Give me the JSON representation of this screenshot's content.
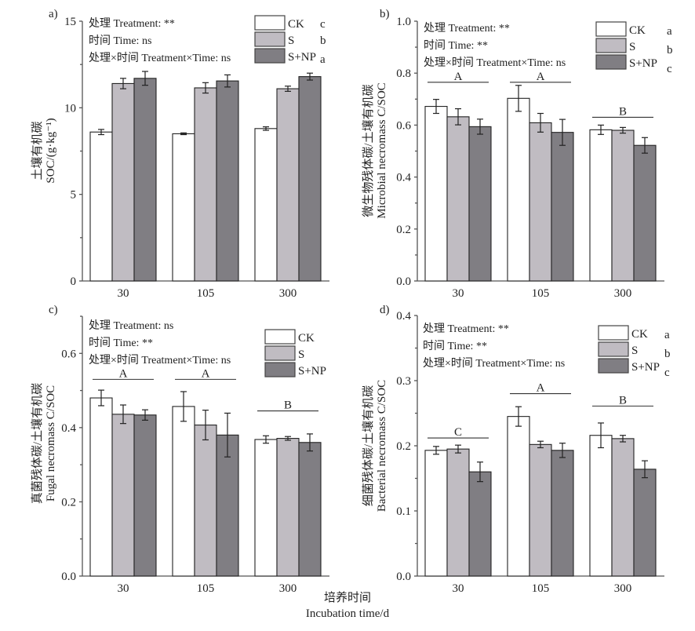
{
  "figure": {
    "xlabel_cn": "培养时间",
    "xlabel_en": "Incubation time/d"
  },
  "series_styles": [
    {
      "name": "CK",
      "color": "#ffffff"
    },
    {
      "name": "S",
      "color": "#c0bcc2"
    },
    {
      "name": "S+NP",
      "color": "#807e83"
    }
  ],
  "chart_data": [
    {
      "type": "bar",
      "panel": "a)",
      "title": "",
      "ylabel_cn": "土壤有机碳",
      "ylabel_en": "SOC/(g·kg⁻¹)",
      "xlabel": "Incubation time/d",
      "categories": [
        "30",
        "105",
        "300"
      ],
      "ylim": [
        0,
        15
      ],
      "yticks": [
        "0",
        "5",
        "10",
        "15"
      ],
      "ytick_values": [
        0,
        5,
        10,
        15
      ],
      "minor_step": 2.5,
      "stats": [
        "处理 Treatment: **",
        "时间 Time: ns",
        "处理×时间 Treatment×Time: ns"
      ],
      "legend": {
        "position": "top-right",
        "letters": [
          "c",
          "b",
          "a"
        ]
      },
      "group_letters": [],
      "series": [
        {
          "name": "CK",
          "values": [
            8.6,
            8.5,
            8.8
          ],
          "errors": [
            0.15,
            0.05,
            0.1
          ]
        },
        {
          "name": "S",
          "values": [
            11.4,
            11.15,
            11.1
          ],
          "errors": [
            0.3,
            0.3,
            0.15
          ]
        },
        {
          "name": "S+NP",
          "values": [
            11.7,
            11.55,
            11.8
          ],
          "errors": [
            0.4,
            0.35,
            0.2
          ]
        }
      ]
    },
    {
      "type": "bar",
      "panel": "b)",
      "title": "",
      "ylabel_cn": "微生物残体碳/土壤有机碳",
      "ylabel_en": "Microbial necromass C/SOC",
      "xlabel": "Incubation time/d",
      "categories": [
        "30",
        "105",
        "300"
      ],
      "ylim": [
        0,
        1.0
      ],
      "yticks": [
        "0.0",
        "0.2",
        "0.4",
        "0.6",
        "0.8",
        "1.0"
      ],
      "ytick_values": [
        0,
        0.2,
        0.4,
        0.6,
        0.8,
        1.0
      ],
      "minor_step": 0.1,
      "stats": [
        "处理 Treatment: **",
        "时间 Time: **",
        "处理×时间 Treatment×Time: ns"
      ],
      "legend": {
        "position": "top-right",
        "letters": [
          "a",
          "b",
          "c"
        ]
      },
      "group_letters": [
        {
          "label": "A",
          "value": 0.765
        },
        {
          "label": "A",
          "value": 0.765
        },
        {
          "label": "B",
          "value": 0.63
        }
      ],
      "series": [
        {
          "name": "CK",
          "values": [
            0.672,
            0.703,
            0.582
          ],
          "errors": [
            0.027,
            0.05,
            0.018
          ]
        },
        {
          "name": "S",
          "values": [
            0.632,
            0.609,
            0.58
          ],
          "errors": [
            0.031,
            0.036,
            0.011
          ]
        },
        {
          "name": "S+NP",
          "values": [
            0.594,
            0.572,
            0.522
          ],
          "errors": [
            0.029,
            0.05,
            0.03
          ]
        }
      ]
    },
    {
      "type": "bar",
      "panel": "c)",
      "title": "",
      "ylabel_cn": "真菌残体碳/土壤有机碳",
      "ylabel_en": "Fugal necromass C/SOC",
      "xlabel": "Incubation time/d",
      "categories": [
        "30",
        "105",
        "300"
      ],
      "ylim": [
        0,
        0.7
      ],
      "yticks": [
        "0.0",
        "0.2",
        "0.4",
        "0.6"
      ],
      "ytick_values": [
        0,
        0.2,
        0.4,
        0.6
      ],
      "minor_step": 0.1,
      "stats": [
        "处理 Treatment: ns",
        "时间 Time: **",
        "处理×时间 Treatment×Time: ns"
      ],
      "legend": {
        "position": "top-right",
        "letters": []
      },
      "group_letters": [
        {
          "label": "A",
          "value": 0.53
        },
        {
          "label": "A",
          "value": 0.53
        },
        {
          "label": "B",
          "value": 0.445
        }
      ],
      "series": [
        {
          "name": "CK",
          "values": [
            0.48,
            0.457,
            0.368
          ],
          "errors": [
            0.021,
            0.04,
            0.01
          ]
        },
        {
          "name": "S",
          "values": [
            0.436,
            0.407,
            0.371
          ],
          "errors": [
            0.025,
            0.04,
            0.005
          ]
        },
        {
          "name": "S+NP",
          "values": [
            0.434,
            0.38,
            0.36
          ],
          "errors": [
            0.014,
            0.059,
            0.023
          ]
        }
      ]
    },
    {
      "type": "bar",
      "panel": "d)",
      "title": "",
      "ylabel_cn": "细菌残体碳/土壤有机碳",
      "ylabel_en": "Bacterial necromass C/SOC",
      "xlabel": "Incubation time/d",
      "categories": [
        "30",
        "105",
        "300"
      ],
      "ylim": [
        0,
        0.4
      ],
      "yticks": [
        "0.0",
        "0.1",
        "0.2",
        "0.3",
        "0.4"
      ],
      "ytick_values": [
        0,
        0.1,
        0.2,
        0.3,
        0.4
      ],
      "minor_step": 0.05,
      "stats": [
        "处理 Treatment: **",
        "时间 Time: **",
        "处理×时间 Treatment×Time: ns"
      ],
      "legend": {
        "position": "top-right",
        "letters": [
          "a",
          "b",
          "c"
        ]
      },
      "group_letters": [
        {
          "label": "C",
          "value": 0.212
        },
        {
          "label": "A",
          "value": 0.28
        },
        {
          "label": "B",
          "value": 0.261
        }
      ],
      "series": [
        {
          "name": "CK",
          "values": [
            0.193,
            0.245,
            0.216
          ],
          "errors": [
            0.006,
            0.015,
            0.019
          ]
        },
        {
          "name": "S",
          "values": [
            0.195,
            0.202,
            0.211
          ],
          "errors": [
            0.006,
            0.005,
            0.005
          ]
        },
        {
          "name": "S+NP",
          "values": [
            0.16,
            0.193,
            0.164
          ],
          "errors": [
            0.015,
            0.011,
            0.013
          ]
        }
      ]
    }
  ]
}
